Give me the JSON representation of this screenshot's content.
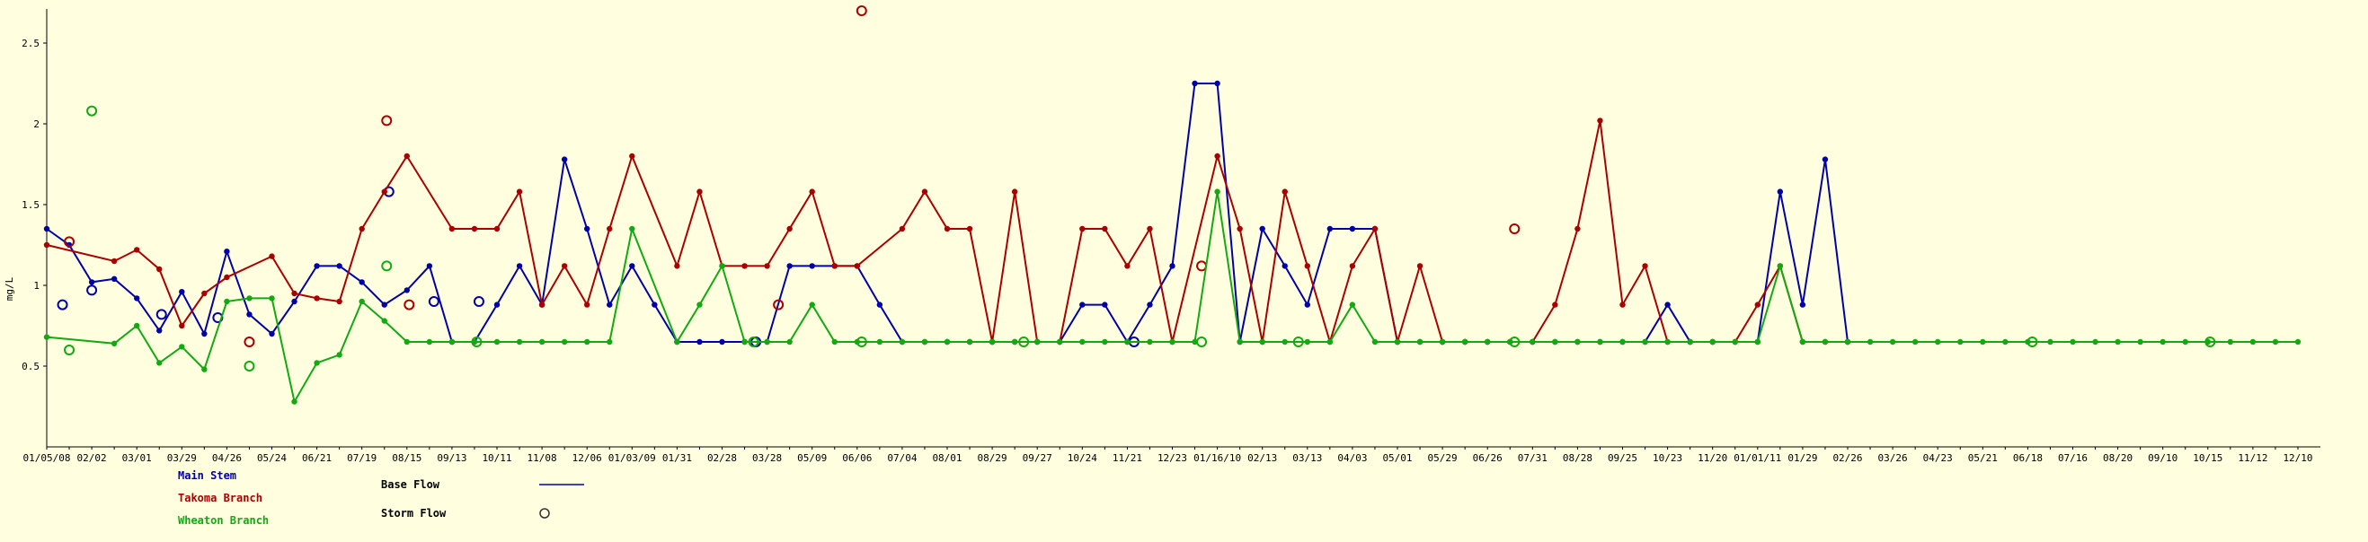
{
  "chart_data": {
    "type": "line",
    "ylabel": "mg/L",
    "xlabel": "",
    "ylim": [
      0,
      2.7
    ],
    "yticks": [
      0.5,
      1,
      1.5,
      2,
      2.5
    ],
    "ytick_labels": [
      "0.5",
      "1",
      "1.5",
      "2",
      "2.5"
    ],
    "grid": false,
    "xtick_labels": [
      "01/05/08",
      "02/02",
      "03/01",
      "03/29",
      "04/26",
      "05/24",
      "06/21",
      "07/19",
      "08/15",
      "09/13",
      "10/11",
      "11/08",
      "12/06",
      "01/03/09",
      "01/31",
      "02/28",
      "03/28",
      "05/09",
      "06/06",
      "07/04",
      "08/01",
      "08/29",
      "09/27",
      "10/24",
      "11/21",
      "12/23",
      "01/16/10",
      "02/13",
      "03/13",
      "04/03",
      "05/01",
      "05/29",
      "06/26",
      "07/31",
      "08/28",
      "09/25",
      "10/23",
      "11/20",
      "01/01/11",
      "01/29",
      "02/26",
      "03/26",
      "04/23",
      "05/21",
      "06/18",
      "07/16",
      "08/20",
      "09/10",
      "10/15",
      "11/12",
      "12/10"
    ],
    "series": [
      {
        "name": "Main Stem",
        "color": "#0000aa",
        "base_flow": [
          [
            0,
            1.35
          ],
          [
            1,
            1.25
          ],
          [
            2,
            1.02
          ],
          [
            3,
            1.04
          ],
          [
            4,
            0.92
          ],
          [
            5,
            0.72
          ],
          [
            6,
            0.96
          ],
          [
            7,
            0.7
          ],
          [
            8,
            1.21
          ],
          [
            9,
            0.82
          ],
          [
            10,
            0.7
          ],
          [
            11,
            0.9
          ],
          [
            12,
            1.12
          ],
          [
            13,
            1.12
          ],
          [
            14,
            1.02
          ],
          [
            15,
            0.88
          ],
          [
            16,
            0.97
          ],
          [
            17,
            1.12
          ],
          [
            18,
            0.65
          ],
          [
            19,
            0.65
          ],
          [
            20,
            0.88
          ],
          [
            21,
            1.12
          ],
          [
            22,
            0.88
          ],
          [
            23,
            1.78
          ],
          [
            24,
            1.35
          ],
          [
            25,
            0.88
          ],
          [
            26,
            1.12
          ],
          [
            27,
            0.88
          ],
          [
            28,
            0.65
          ],
          [
            29,
            0.65
          ],
          [
            30,
            0.65
          ],
          [
            31,
            0.65
          ],
          [
            32,
            0.65
          ],
          [
            33,
            1.12
          ],
          [
            34,
            1.12
          ],
          [
            35,
            1.12
          ],
          [
            36,
            1.12
          ],
          [
            37,
            0.88
          ],
          [
            38,
            0.65
          ],
          [
            39,
            0.65
          ],
          [
            40,
            0.65
          ],
          [
            41,
            0.65
          ],
          [
            42,
            0.65
          ],
          [
            43,
            0.65
          ],
          [
            44,
            0.65
          ],
          [
            45,
            0.65
          ],
          [
            46,
            0.88
          ],
          [
            47,
            0.88
          ],
          [
            48,
            0.65
          ],
          [
            49,
            0.88
          ],
          [
            50,
            1.12
          ],
          [
            51,
            2.25
          ],
          [
            52,
            2.25
          ],
          [
            53,
            0.65
          ],
          [
            54,
            1.35
          ],
          [
            55,
            1.12
          ],
          [
            56,
            0.88
          ],
          [
            57,
            1.35
          ],
          [
            58,
            1.35
          ],
          [
            59,
            1.35
          ],
          [
            60,
            0.65
          ],
          [
            61,
            0.65
          ],
          [
            62,
            0.65
          ],
          [
            63,
            0.65
          ],
          [
            64,
            0.65
          ],
          [
            65,
            0.65
          ],
          [
            66,
            0.65
          ],
          [
            67,
            0.65
          ],
          [
            68,
            0.65
          ],
          [
            69,
            0.65
          ],
          [
            70,
            0.65
          ],
          [
            71,
            0.65
          ],
          [
            72,
            0.88
          ],
          [
            73,
            0.65
          ],
          [
            74,
            0.65
          ],
          [
            75,
            0.65
          ],
          [
            76,
            0.65
          ],
          [
            77,
            1.58
          ],
          [
            78,
            0.88
          ],
          [
            79,
            1.78
          ],
          [
            80,
            0.65
          ]
        ],
        "storm_flow": [
          [
            0.7,
            0.88
          ],
          [
            2,
            0.97
          ],
          [
            5.1,
            0.82
          ],
          [
            7.6,
            0.8
          ],
          [
            15.2,
            1.58
          ],
          [
            17.2,
            0.9
          ],
          [
            19.2,
            0.9
          ],
          [
            31.5,
            0.65
          ],
          [
            48.3,
            0.65
          ]
        ]
      },
      {
        "name": "Takoma Branch",
        "color": "#aa0000",
        "base_flow": [
          [
            0,
            1.25
          ],
          [
            3,
            1.15
          ],
          [
            4,
            1.22
          ],
          [
            5,
            1.1
          ],
          [
            6,
            0.75
          ],
          [
            7,
            0.95
          ],
          [
            8,
            1.05
          ],
          [
            10,
            1.18
          ],
          [
            11,
            0.95
          ],
          [
            12,
            0.92
          ],
          [
            13,
            0.9
          ],
          [
            14,
            1.35
          ],
          [
            15,
            1.58
          ],
          [
            16,
            1.8
          ],
          [
            18,
            1.35
          ],
          [
            19,
            1.35
          ],
          [
            20,
            1.35
          ],
          [
            21,
            1.58
          ],
          [
            22,
            0.88
          ],
          [
            23,
            1.12
          ],
          [
            24,
            0.88
          ],
          [
            25,
            1.35
          ],
          [
            26,
            1.8
          ],
          [
            28,
            1.12
          ],
          [
            29,
            1.58
          ],
          [
            30,
            1.12
          ],
          [
            31,
            1.12
          ],
          [
            32,
            1.12
          ],
          [
            33,
            1.35
          ],
          [
            34,
            1.58
          ],
          [
            35,
            1.12
          ],
          [
            36,
            1.12
          ],
          [
            38,
            1.35
          ],
          [
            39,
            1.58
          ],
          [
            40,
            1.35
          ],
          [
            41,
            1.35
          ],
          [
            42,
            0.65
          ],
          [
            43,
            1.58
          ],
          [
            44,
            0.65
          ],
          [
            45,
            0.65
          ],
          [
            46,
            1.35
          ],
          [
            47,
            1.35
          ],
          [
            48,
            1.12
          ],
          [
            49,
            1.35
          ],
          [
            50,
            0.65
          ],
          [
            52,
            1.8
          ],
          [
            53,
            1.35
          ],
          [
            54,
            0.65
          ],
          [
            55,
            1.58
          ],
          [
            56,
            1.12
          ],
          [
            57,
            0.65
          ],
          [
            58,
            1.12
          ],
          [
            59,
            1.35
          ],
          [
            60,
            0.65
          ],
          [
            61,
            1.12
          ],
          [
            62,
            0.65
          ],
          [
            63,
            0.65
          ],
          [
            64,
            0.65
          ],
          [
            65,
            0.65
          ],
          [
            66,
            0.65
          ],
          [
            67,
            0.88
          ],
          [
            68,
            1.35
          ],
          [
            69,
            2.02
          ],
          [
            70,
            0.88
          ],
          [
            71,
            1.12
          ],
          [
            72,
            0.65
          ],
          [
            73,
            0.65
          ],
          [
            74,
            0.65
          ],
          [
            75,
            0.65
          ],
          [
            76,
            0.88
          ],
          [
            77,
            1.12
          ],
          [
            78,
            0.65
          ],
          [
            79,
            0.65
          ],
          [
            80,
            0.65
          ]
        ],
        "storm_flow": [
          [
            1,
            1.27
          ],
          [
            9,
            0.65
          ],
          [
            15.1,
            2.02
          ],
          [
            16.1,
            0.88
          ],
          [
            32.5,
            0.88
          ],
          [
            36.2,
            2.7
          ],
          [
            51.3,
            1.12
          ],
          [
            65.2,
            1.35
          ]
        ]
      },
      {
        "name": "Wheaton Branch",
        "color": "#11aa11",
        "base_flow": [
          [
            0,
            0.68
          ],
          [
            3,
            0.64
          ],
          [
            4,
            0.75
          ],
          [
            5,
            0.52
          ],
          [
            6,
            0.62
          ],
          [
            7,
            0.48
          ],
          [
            8,
            0.9
          ],
          [
            9,
            0.92
          ],
          [
            10,
            0.92
          ],
          [
            11,
            0.28
          ],
          [
            12,
            0.52
          ],
          [
            13,
            0.57
          ],
          [
            14,
            0.9
          ],
          [
            15,
            0.78
          ],
          [
            16,
            0.65
          ],
          [
            17,
            0.65
          ],
          [
            18,
            0.65
          ],
          [
            19,
            0.65
          ],
          [
            20,
            0.65
          ],
          [
            21,
            0.65
          ],
          [
            22,
            0.65
          ],
          [
            23,
            0.65
          ],
          [
            24,
            0.65
          ],
          [
            25,
            0.65
          ],
          [
            26,
            1.35
          ],
          [
            28,
            0.65
          ],
          [
            29,
            0.88
          ],
          [
            30,
            1.12
          ],
          [
            31,
            0.65
          ],
          [
            32,
            0.65
          ],
          [
            33,
            0.65
          ],
          [
            34,
            0.88
          ],
          [
            35,
            0.65
          ],
          [
            36,
            0.65
          ],
          [
            37,
            0.65
          ],
          [
            38,
            0.65
          ],
          [
            39,
            0.65
          ],
          [
            40,
            0.65
          ],
          [
            41,
            0.65
          ],
          [
            42,
            0.65
          ],
          [
            43,
            0.65
          ],
          [
            44,
            0.65
          ],
          [
            45,
            0.65
          ],
          [
            46,
            0.65
          ],
          [
            47,
            0.65
          ],
          [
            48,
            0.65
          ],
          [
            49,
            0.65
          ],
          [
            50,
            0.65
          ],
          [
            51,
            0.65
          ],
          [
            52,
            1.58
          ],
          [
            53,
            0.65
          ],
          [
            54,
            0.65
          ],
          [
            55,
            0.65
          ],
          [
            56,
            0.65
          ],
          [
            57,
            0.65
          ],
          [
            58,
            0.88
          ],
          [
            59,
            0.65
          ],
          [
            60,
            0.65
          ],
          [
            61,
            0.65
          ],
          [
            62,
            0.65
          ],
          [
            63,
            0.65
          ],
          [
            64,
            0.65
          ],
          [
            65,
            0.65
          ],
          [
            66,
            0.65
          ],
          [
            67,
            0.65
          ],
          [
            68,
            0.65
          ],
          [
            69,
            0.65
          ],
          [
            70,
            0.65
          ],
          [
            71,
            0.65
          ],
          [
            72,
            0.65
          ],
          [
            73,
            0.65
          ],
          [
            74,
            0.65
          ],
          [
            75,
            0.65
          ],
          [
            76,
            0.65
          ],
          [
            77,
            1.12
          ],
          [
            78,
            0.65
          ],
          [
            79,
            0.65
          ],
          [
            80,
            0.65
          ],
          [
            81,
            0.65
          ],
          [
            82,
            0.65
          ],
          [
            83,
            0.65
          ],
          [
            84,
            0.65
          ],
          [
            85,
            0.65
          ],
          [
            86,
            0.65
          ],
          [
            87,
            0.65
          ],
          [
            88,
            0.65
          ],
          [
            89,
            0.65
          ],
          [
            90,
            0.65
          ],
          [
            91,
            0.65
          ],
          [
            92,
            0.65
          ],
          [
            93,
            0.65
          ],
          [
            94,
            0.65
          ],
          [
            95,
            0.65
          ],
          [
            96,
            0.65
          ],
          [
            97,
            0.65
          ],
          [
            98,
            0.65
          ],
          [
            99,
            0.65
          ],
          [
            100,
            0.65
          ]
        ],
        "storm_flow": [
          [
            1,
            0.6
          ],
          [
            2,
            2.08
          ],
          [
            9,
            0.5
          ],
          [
            15.1,
            1.12
          ],
          [
            19.1,
            0.65
          ],
          [
            31.4,
            0.65
          ],
          [
            36.2,
            0.65
          ],
          [
            43.4,
            0.65
          ],
          [
            51.3,
            0.65
          ],
          [
            55.6,
            0.65
          ],
          [
            65.2,
            0.65
          ],
          [
            88.2,
            0.65
          ],
          [
            96.1,
            0.65
          ]
        ]
      }
    ],
    "legend": {
      "series_labels": [
        "Main Stem",
        "Takoma Branch",
        "Wheaton Branch"
      ],
      "base_flow_label": "Base Flow",
      "storm_flow_label": "Storm Flow"
    }
  }
}
